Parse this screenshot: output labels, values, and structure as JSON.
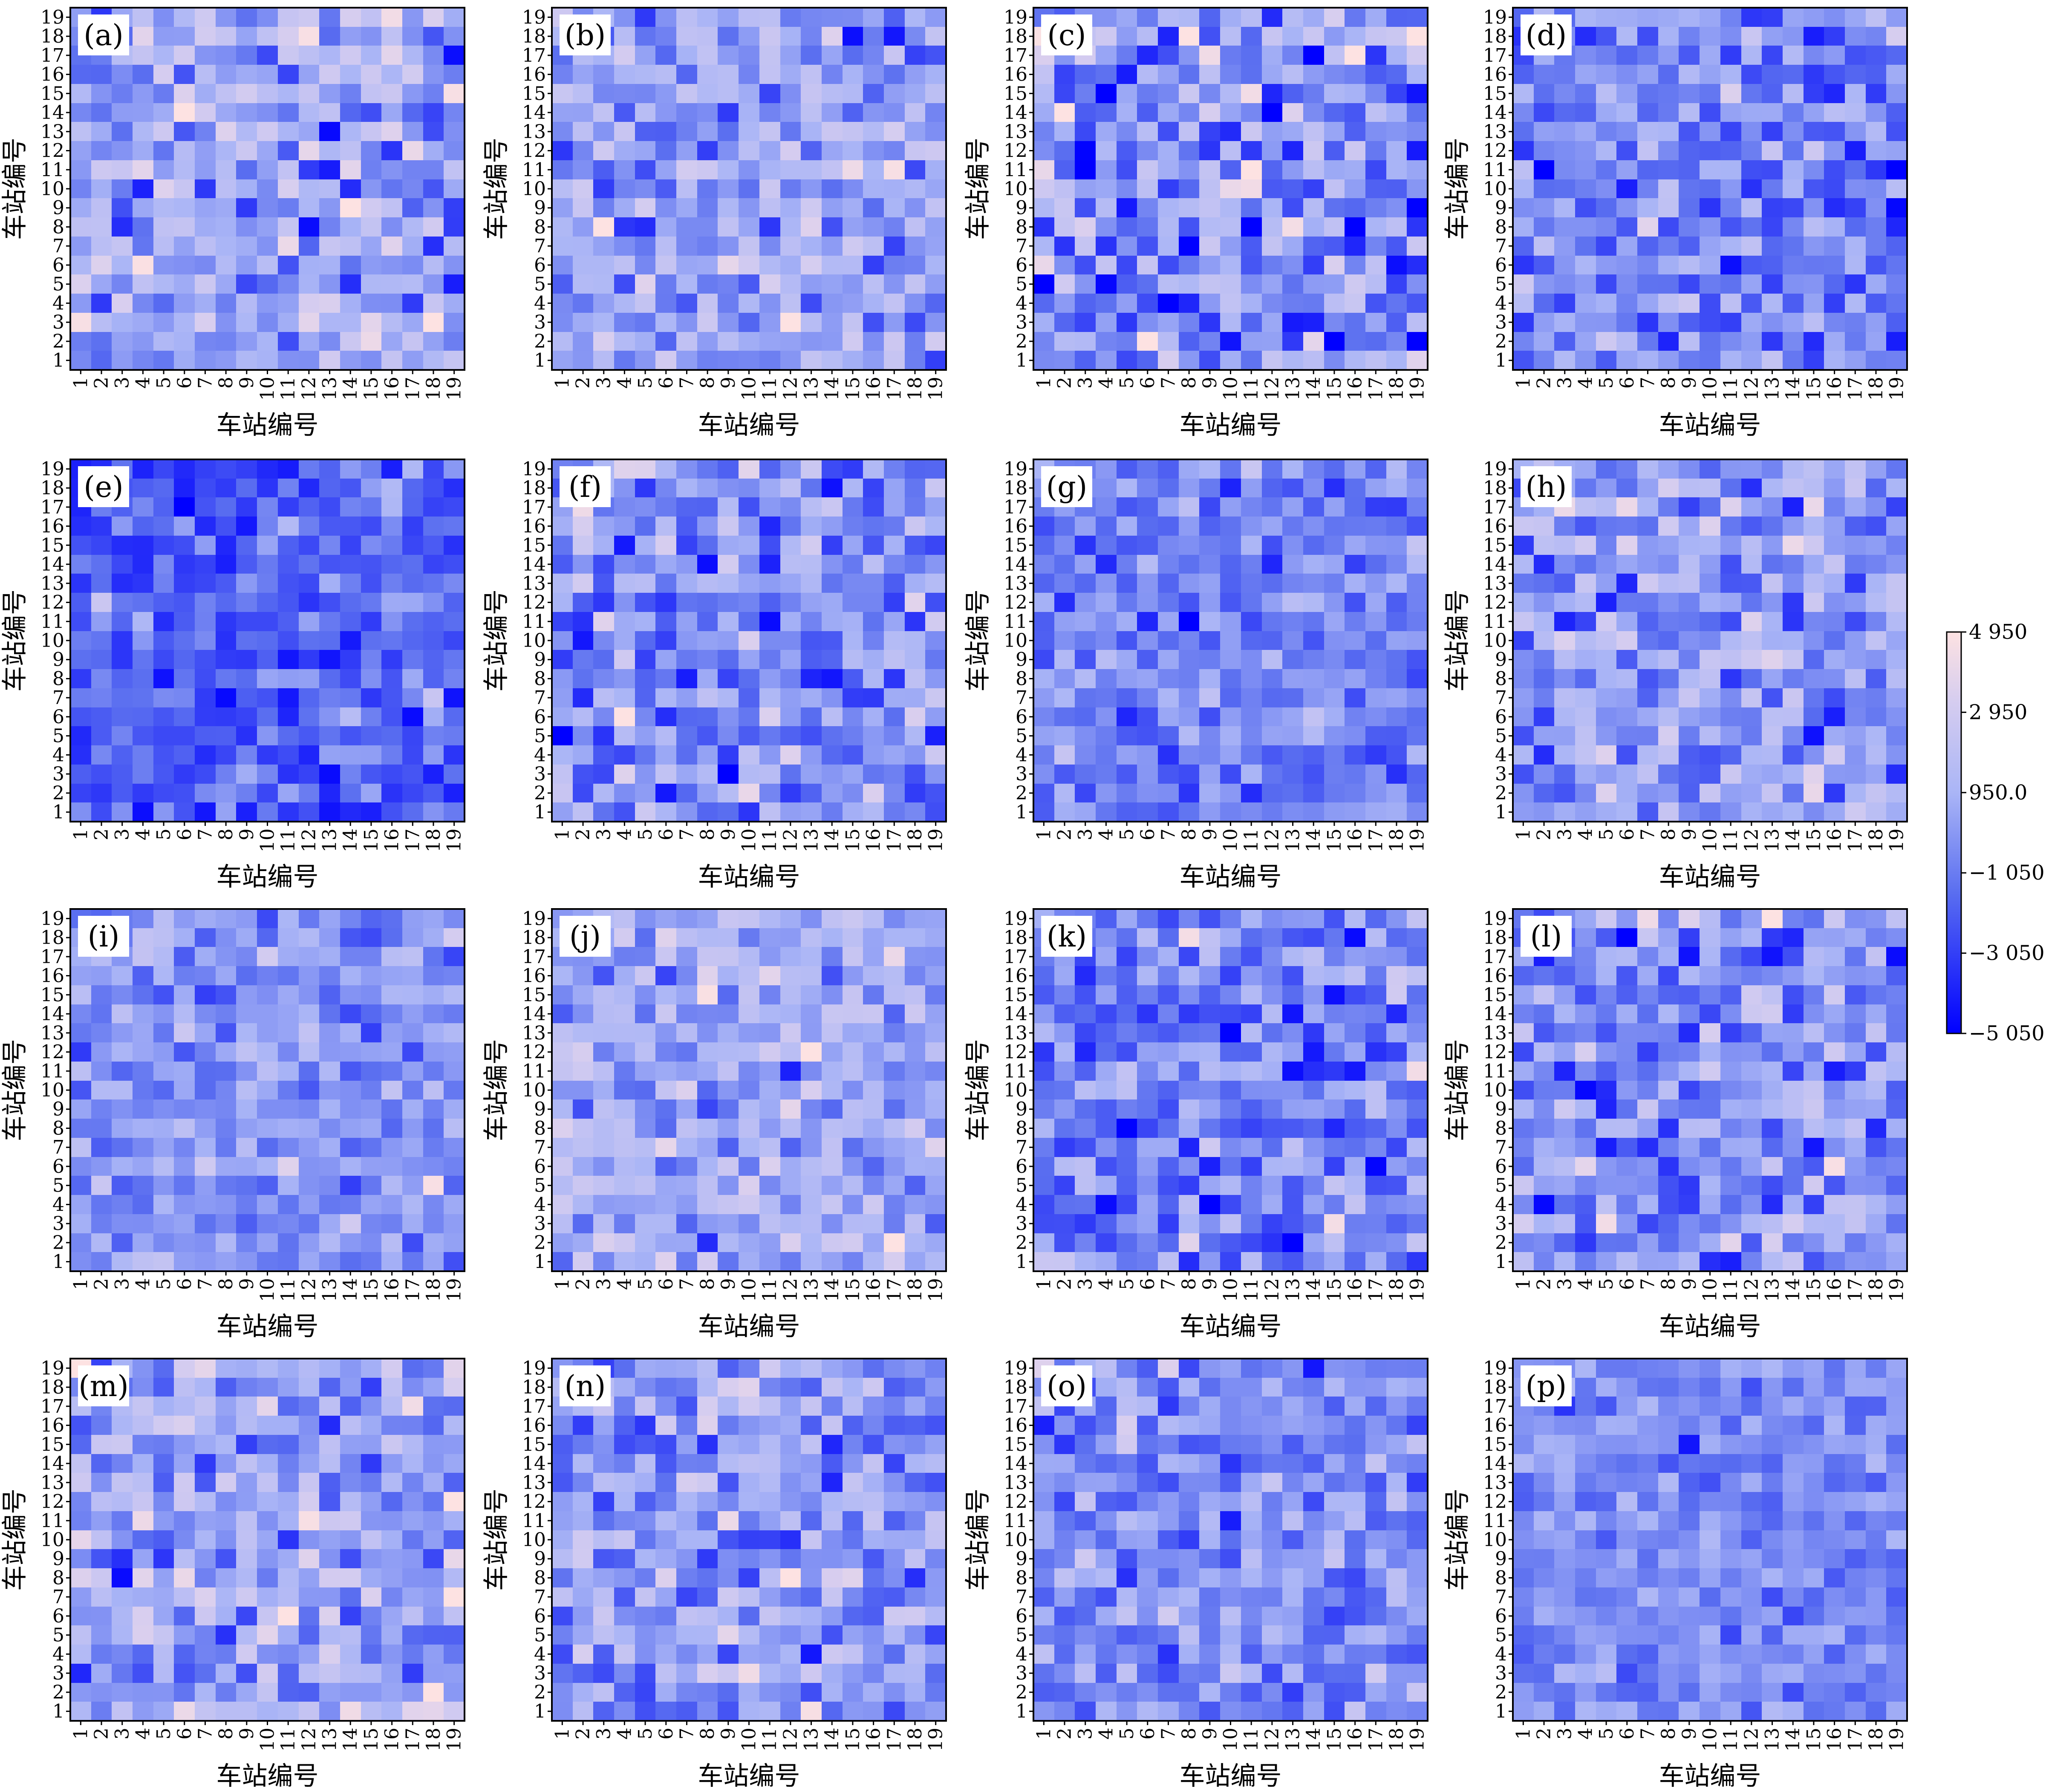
{
  "chart_data": {
    "type": "heatmap",
    "layout": "4x4 grid of heatmap panels sharing one colorbar",
    "grid_size": 19,
    "ticks": [
      "1",
      "2",
      "3",
      "4",
      "5",
      "6",
      "7",
      "8",
      "9",
      "10",
      "11",
      "12",
      "13",
      "14",
      "15",
      "16",
      "17",
      "18",
      "19"
    ],
    "xlabel": "车站编号",
    "ylabel": "车站编号",
    "colorbar": {
      "min": -5050,
      "max": 4950,
      "tick_values": [
        4950,
        2950,
        950,
        -1050,
        -3050,
        -5050
      ],
      "tick_labels": [
        "4 950",
        "2 950",
        "950.0",
        "−1 050",
        "−3 050",
        "−5 050"
      ],
      "colors": {
        "low": "#0000ff",
        "mid": "#aab5f6",
        "high": "#fde2e2"
      }
    },
    "value_note": "cell values are estimated by colour; each panel is sketched with its approximate bias and spread",
    "panels": [
      {
        "label": "(a)",
        "mean": 500,
        "spread": 1900
      },
      {
        "label": "(b)",
        "mean": 300,
        "spread": 1500
      },
      {
        "label": "(c)",
        "mean": -200,
        "spread": 2200
      },
      {
        "label": "(d)",
        "mean": -800,
        "spread": 1600
      },
      {
        "label": "(e)",
        "mean": -1900,
        "spread": 1300
      },
      {
        "label": "(f)",
        "mean": -500,
        "spread": 1900
      },
      {
        "label": "(g)",
        "mean": -800,
        "spread": 1200
      },
      {
        "label": "(h)",
        "mean": 100,
        "spread": 1800
      },
      {
        "label": "(i)",
        "mean": -200,
        "spread": 1200
      },
      {
        "label": "(j)",
        "mean": 700,
        "spread": 1400
      },
      {
        "label": "(k)",
        "mean": -700,
        "spread": 1800
      },
      {
        "label": "(l)",
        "mean": -300,
        "spread": 1900
      },
      {
        "label": "(m)",
        "mean": 400,
        "spread": 1800
      },
      {
        "label": "(n)",
        "mean": 100,
        "spread": 1800
      },
      {
        "label": "(o)",
        "mean": -600,
        "spread": 1500
      },
      {
        "label": "(p)",
        "mean": -500,
        "spread": 900
      }
    ]
  }
}
